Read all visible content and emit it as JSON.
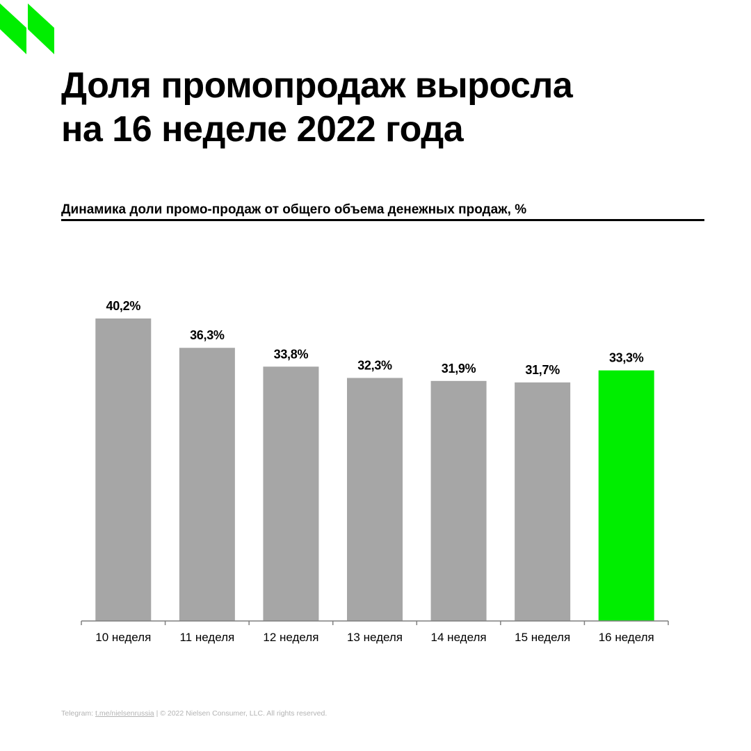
{
  "brand": {
    "logo_color": "#00ee00"
  },
  "headline": {
    "line1": "Доля промопродаж выросла",
    "line2": "на 16 неделе 2022 года"
  },
  "chart_data": {
    "type": "bar",
    "title": "Динамика доли промо-продаж от общего объема денежных продаж, %",
    "categories": [
      "10 неделя",
      "11 неделя",
      "12 неделя",
      "13 неделя",
      "14 неделя",
      "15 неделя",
      "16 неделя"
    ],
    "values": [
      40.2,
      36.3,
      33.8,
      32.3,
      31.9,
      31.7,
      33.3
    ],
    "value_labels": [
      "40,2%",
      "36,3%",
      "33,8%",
      "32,3%",
      "31,9%",
      "31,7%",
      "33,3%"
    ],
    "bar_colors": [
      "#a6a6a6",
      "#a6a6a6",
      "#a6a6a6",
      "#a6a6a6",
      "#a6a6a6",
      "#a6a6a6",
      "#00ee00"
    ],
    "ylim": [
      0,
      40.2
    ],
    "grid": false,
    "legend": "none"
  },
  "footer": {
    "prefix": "Telegram: ",
    "link": "t.me/nielsenrussia",
    "separator": " | ",
    "copyright": "© 2022 Nielsen Consumer, LLC. All rights reserved."
  }
}
